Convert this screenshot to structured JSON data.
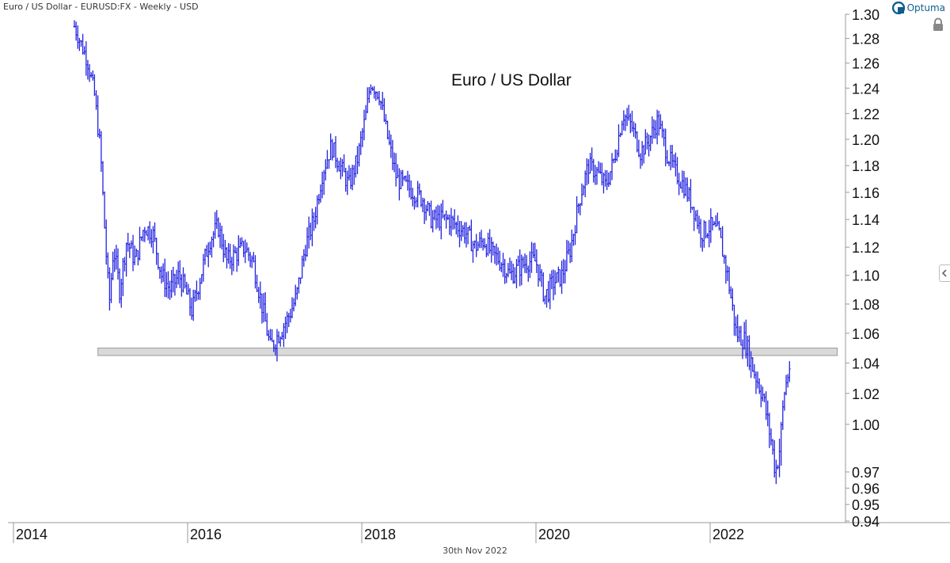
{
  "header": {
    "title": "Euro / US Dollar - EURUSD:FX - Weekly - USD"
  },
  "brand": {
    "name": "Optuma",
    "color": "#0b5e8e"
  },
  "footer": {
    "date": "30th Nov 2022"
  },
  "icons": {
    "lock": "lock-icon",
    "collapse": "chevron-left-icon",
    "logo": "optuma-logo-icon"
  },
  "colors": {
    "price": "#2323e0",
    "support_band": "#d9d9d9",
    "support_border": "#999999",
    "axis": "#999999",
    "text": "#111111"
  },
  "chart_data": {
    "type": "line",
    "style": "weekly OHLC bars",
    "title": "Euro / US Dollar",
    "xlabel": "",
    "ylabel": "",
    "ylim": [
      0.94,
      1.3
    ],
    "grid": false,
    "x_tick_labels": [
      "2014",
      "2016",
      "2018",
      "2020",
      "2022"
    ],
    "y_tick_labels": [
      "1.30",
      "1.28",
      "1.26",
      "1.24",
      "1.22",
      "1.20",
      "1.18",
      "1.16",
      "1.14",
      "1.12",
      "1.10",
      "1.08",
      "1.06",
      "1.04",
      "1.02",
      "1.00",
      "0.97",
      "0.96",
      "0.95",
      "0.94"
    ],
    "support_zone": {
      "from": 2014.97,
      "to": 2023.46,
      "low": 1.045,
      "high": 1.05
    },
    "series": [
      {
        "x": [
          2014.7,
          2014.78,
          2014.85,
          2014.93,
          2015.0,
          2015.05,
          2015.1,
          2015.15,
          2015.22,
          2015.3,
          2015.4,
          2015.5,
          2015.6,
          2015.7,
          2015.8,
          2015.9,
          2015.97,
          2016.05,
          2016.15,
          2016.25,
          2016.35,
          2016.45,
          2016.55,
          2016.65,
          2016.75,
          2016.85,
          2016.95,
          2017.05,
          2017.15,
          2017.25,
          2017.35,
          2017.45,
          2017.55,
          2017.65,
          2017.75,
          2017.85,
          2017.95,
          2018.05,
          2018.1,
          2018.2,
          2018.3,
          2018.4,
          2018.5,
          2018.6,
          2018.7,
          2018.8,
          2018.9,
          2019.0,
          2019.1,
          2019.2,
          2019.3,
          2019.4,
          2019.5,
          2019.6,
          2019.7,
          2019.8,
          2019.9,
          2020.0,
          2020.1,
          2020.2,
          2020.3,
          2020.4,
          2020.5,
          2020.6,
          2020.7,
          2020.8,
          2020.9,
          2021.0,
          2021.1,
          2021.2,
          2021.3,
          2021.4,
          2021.5,
          2021.6,
          2021.7,
          2021.8,
          2021.9,
          2022.0,
          2022.1,
          2022.2,
          2022.3,
          2022.4,
          2022.5,
          2022.6,
          2022.7,
          2022.75,
          2022.8,
          2022.85,
          2022.92
        ],
        "y": [
          1.29,
          1.275,
          1.262,
          1.235,
          1.19,
          1.13,
          1.08,
          1.12,
          1.09,
          1.125,
          1.11,
          1.135,
          1.13,
          1.1,
          1.09,
          1.1,
          1.09,
          1.075,
          1.1,
          1.125,
          1.135,
          1.11,
          1.115,
          1.12,
          1.11,
          1.08,
          1.05,
          1.06,
          1.07,
          1.085,
          1.12,
          1.14,
          1.175,
          1.195,
          1.18,
          1.165,
          1.185,
          1.22,
          1.245,
          1.235,
          1.2,
          1.17,
          1.165,
          1.16,
          1.155,
          1.14,
          1.14,
          1.14,
          1.135,
          1.13,
          1.12,
          1.125,
          1.115,
          1.11,
          1.1,
          1.105,
          1.11,
          1.11,
          1.085,
          1.095,
          1.1,
          1.12,
          1.155,
          1.18,
          1.175,
          1.165,
          1.185,
          1.22,
          1.21,
          1.19,
          1.2,
          1.215,
          1.19,
          1.175,
          1.165,
          1.15,
          1.13,
          1.135,
          1.13,
          1.1,
          1.06,
          1.055,
          1.035,
          1.02,
          0.99,
          0.97,
          0.985,
          1.02,
          1.04
        ]
      }
    ]
  }
}
